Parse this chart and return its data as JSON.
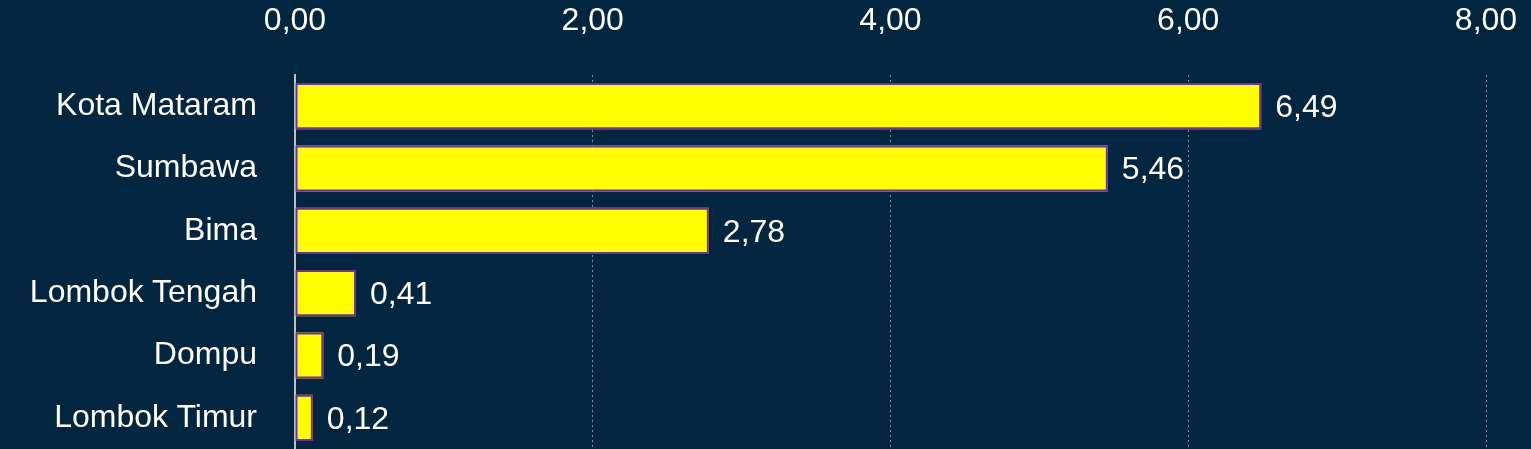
{
  "chart_data": {
    "type": "bar",
    "orientation": "horizontal",
    "categories": [
      "Kota Mataram",
      "Sumbawa",
      "Bima",
      "Lombok Tengah",
      "Dompu",
      "Lombok Timur"
    ],
    "values": [
      6.49,
      5.46,
      2.78,
      0.41,
      0.19,
      0.12
    ],
    "value_labels": [
      "6,49",
      "5,46",
      "2,78",
      "0,41",
      "0,19",
      "0,12"
    ],
    "color": "#ffff00",
    "xlim": [
      0,
      8
    ],
    "xticks": [
      {
        "value": 0,
        "label": "0,00"
      },
      {
        "value": 2,
        "label": "2,00"
      },
      {
        "value": 4,
        "label": "4,00"
      },
      {
        "value": 6,
        "label": "6,00"
      },
      {
        "value": 8,
        "label": "8,00"
      }
    ],
    "grid": "x"
  }
}
